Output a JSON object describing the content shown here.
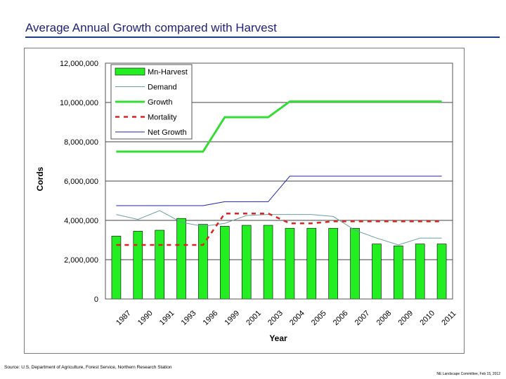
{
  "slide": {
    "title": "Average Annual Growth compared with Harvest",
    "source": "Source: U.S. Department of Agriculture, Forest Service, Northern Research Station",
    "footer": "NE Landscape Committee, Feb 15, 2012"
  },
  "colors": {
    "title": "#1f1f7a",
    "rule": "#1f3a8a",
    "harvest_fill": "#22ee22",
    "harvest_stroke": "#000000",
    "demand": "#6aa0a0",
    "growth": "#33dd33",
    "mortality": "#dd2222",
    "net_growth": "#2222aa"
  },
  "chart_data": {
    "type": "bar",
    "categories": [
      "1987",
      "1990",
      "1991",
      "1993",
      "1996",
      "1999",
      "2001",
      "2003",
      "2004",
      "2005",
      "2006",
      "2007",
      "2008",
      "2009",
      "2010",
      "2011"
    ],
    "xlabel": "Year",
    "ylabel": "Cords",
    "ylim": [
      0,
      12000000
    ],
    "yticks": [
      0,
      2000000,
      4000000,
      6000000,
      8000000,
      10000000,
      12000000
    ],
    "ytick_labels": [
      "0",
      "2,000,000",
      "4,000,000",
      "6,000,000",
      "8,000,000",
      "10,000,000",
      "12,000,000"
    ],
    "grid": true,
    "legend_position": "top-left",
    "series": [
      {
        "name": "Mn-Harvest",
        "kind": "bar",
        "values": [
          3200000,
          3450000,
          3500000,
          4100000,
          3800000,
          3700000,
          3750000,
          3750000,
          3600000,
          3600000,
          3600000,
          3600000,
          2800000,
          2700000,
          2800000,
          2800000
        ]
      },
      {
        "name": "Demand",
        "kind": "line",
        "values": [
          4300000,
          4050000,
          4500000,
          3900000,
          3700000,
          3850000,
          4250000,
          4300000,
          4300000,
          4300000,
          4200000,
          3500000,
          3100000,
          2750000,
          3100000,
          3100000
        ]
      },
      {
        "name": "Growth",
        "kind": "line",
        "values": [
          7500000,
          7500000,
          7500000,
          7500000,
          7500000,
          9250000,
          9250000,
          9250000,
          10050000,
          10050000,
          10050000,
          10050000,
          10050000,
          10050000,
          10050000,
          10050000
        ]
      },
      {
        "name": "Mortality",
        "kind": "line",
        "values": [
          2750000,
          2750000,
          2750000,
          2750000,
          2750000,
          4350000,
          4350000,
          4350000,
          3850000,
          3850000,
          3950000,
          3950000,
          3950000,
          3950000,
          3950000,
          3950000
        ]
      },
      {
        "name": "Net Growth",
        "kind": "line",
        "values": [
          4750000,
          4750000,
          4750000,
          4750000,
          4750000,
          4950000,
          4950000,
          4950000,
          6250000,
          6250000,
          6250000,
          6250000,
          6250000,
          6250000,
          6250000,
          6250000
        ]
      }
    ]
  }
}
